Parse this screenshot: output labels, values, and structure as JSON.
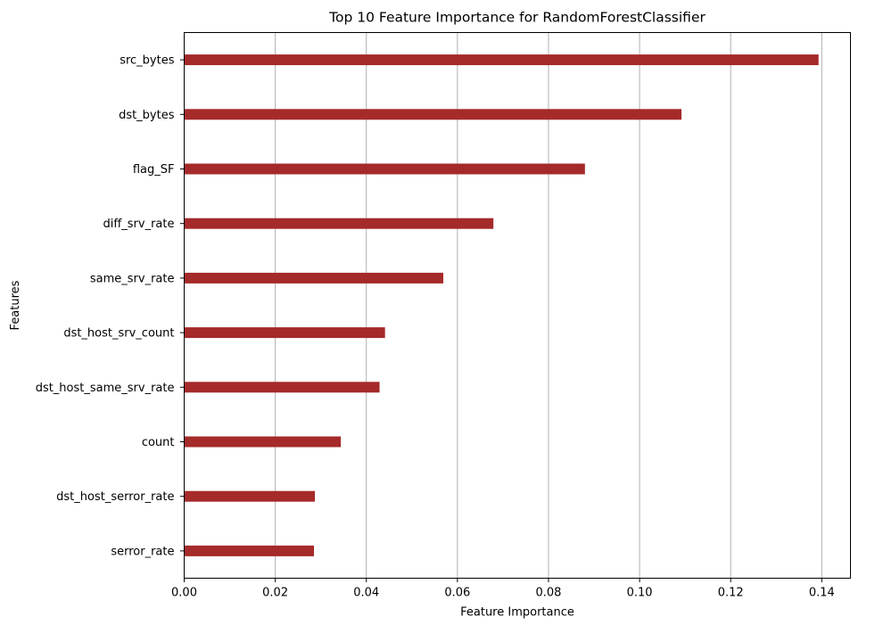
{
  "chart_data": {
    "type": "bar",
    "orientation": "horizontal",
    "title": "Top 10 Feature Importance for RandomForestClassifier",
    "xlabel": "Feature Importance",
    "ylabel": "Features",
    "categories": [
      "src_bytes",
      "dst_bytes",
      "flag_SF",
      "diff_srv_rate",
      "same_srv_rate",
      "dst_host_srv_count",
      "dst_host_same_srv_rate",
      "count",
      "dst_host_serror_rate",
      "serror_rate"
    ],
    "values": [
      0.1393,
      0.1092,
      0.088,
      0.0679,
      0.0569,
      0.0441,
      0.0429,
      0.0344,
      0.0287,
      0.0285
    ],
    "xlim": [
      0,
      0.1463
    ],
    "xticks": [
      0.0,
      0.02,
      0.04,
      0.06,
      0.08,
      0.1,
      0.12,
      0.14
    ],
    "xtick_labels": [
      "0.00",
      "0.02",
      "0.04",
      "0.06",
      "0.08",
      "0.10",
      "0.12",
      "0.14"
    ],
    "grid": "vertical",
    "bar_color": "#a52a2a",
    "grid_color": "#b0b0b0"
  }
}
